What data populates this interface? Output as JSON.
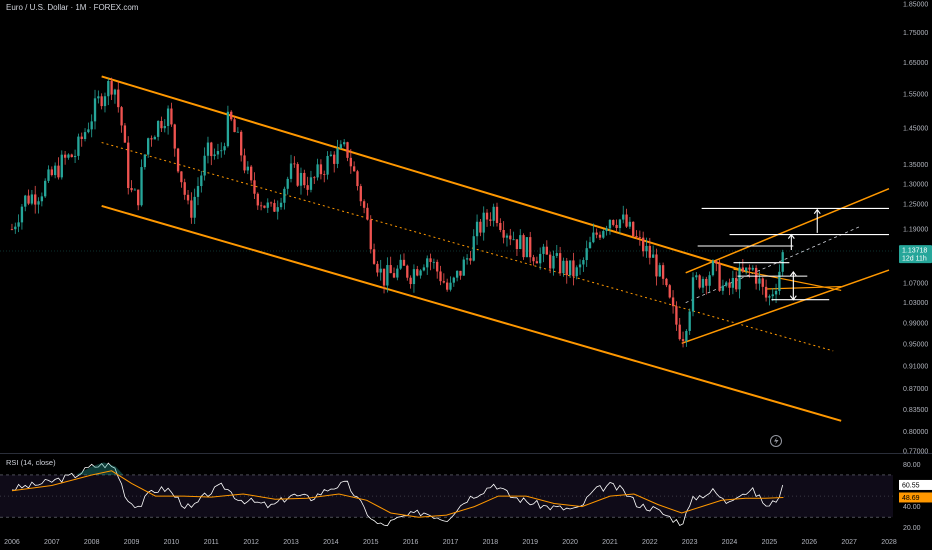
{
  "chart_title": "Euro / U.S. Dollar · 1M · FOREX.com",
  "current_price_label": "1.13718",
  "countdown_label": "12d 11h",
  "colors": {
    "background": "#000000",
    "up": "#26a69a",
    "down": "#ef5350",
    "channel": "#ff9800",
    "rsi_line": "#ffffff",
    "rsi_ma": "#ff9800",
    "rsi_band": "#7e57c2",
    "price_badge": "#26a69a",
    "rsi_badge": "#ffffff",
    "rsi_ma_badge": "#ff9800",
    "target_lines": "#ffffff"
  },
  "chart_data": [
    {
      "type": "candlestick",
      "y_scale": "log",
      "y_ticks": [
        "1.85000",
        "1.75000",
        "1.65000",
        "1.55000",
        "1.45000",
        "1.35000",
        "1.30000",
        "1.25000",
        "1.19000",
        "1.13000",
        "1.07000",
        "1.03000",
        "0.99000",
        "0.95000",
        "0.91000",
        "0.87000",
        "0.83500",
        "0.80000",
        "0.77000"
      ],
      "x_ticks": [
        "2006",
        "2007",
        "2008",
        "2009",
        "2010",
        "2011",
        "2012",
        "2013",
        "2014",
        "2015",
        "2016",
        "2017",
        "2018",
        "2019",
        "2020",
        "2021",
        "2022",
        "2023",
        "2024",
        "2025",
        "2026",
        "2027",
        "2028"
      ],
      "x_range": [
        2005.7,
        2028.1
      ],
      "y_range": [
        0.77,
        1.85
      ],
      "current_price": 1.13718,
      "price_path": [
        [
          2006.0,
          1.19
        ],
        [
          2006.3,
          1.26
        ],
        [
          2006.7,
          1.28
        ],
        [
          2007.0,
          1.32
        ],
        [
          2007.3,
          1.36
        ],
        [
          2007.6,
          1.38
        ],
        [
          2007.9,
          1.46
        ],
        [
          2008.3,
          1.56
        ],
        [
          2008.55,
          1.59
        ],
        [
          2008.75,
          1.46
        ],
        [
          2008.95,
          1.28
        ],
        [
          2009.15,
          1.26
        ],
        [
          2009.4,
          1.42
        ],
        [
          2009.9,
          1.5
        ],
        [
          2010.2,
          1.34
        ],
        [
          2010.45,
          1.22
        ],
        [
          2010.9,
          1.38
        ],
        [
          2011.2,
          1.37
        ],
        [
          2011.45,
          1.48
        ],
        [
          2011.7,
          1.4
        ],
        [
          2012.0,
          1.29
        ],
        [
          2012.5,
          1.23
        ],
        [
          2013.0,
          1.33
        ],
        [
          2013.5,
          1.3
        ],
        [
          2014.0,
          1.37
        ],
        [
          2014.4,
          1.39
        ],
        [
          2014.8,
          1.25
        ],
        [
          2015.1,
          1.13
        ],
        [
          2015.3,
          1.08
        ],
        [
          2015.8,
          1.1
        ],
        [
          2016.0,
          1.09
        ],
        [
          2016.4,
          1.13
        ],
        [
          2016.8,
          1.08
        ],
        [
          2016.95,
          1.05
        ],
        [
          2017.4,
          1.12
        ],
        [
          2017.7,
          1.19
        ],
        [
          2018.1,
          1.24
        ],
        [
          2018.3,
          1.2
        ],
        [
          2018.7,
          1.16
        ],
        [
          2019.0,
          1.14
        ],
        [
          2019.5,
          1.12
        ],
        [
          2019.9,
          1.1
        ],
        [
          2020.2,
          1.09
        ],
        [
          2020.6,
          1.17
        ],
        [
          2021.0,
          1.22
        ],
        [
          2021.3,
          1.21
        ],
        [
          2021.7,
          1.16
        ],
        [
          2022.1,
          1.12
        ],
        [
          2022.4,
          1.05
        ],
        [
          2022.7,
          0.98
        ],
        [
          2022.85,
          0.97
        ],
        [
          2023.1,
          1.07
        ],
        [
          2023.6,
          1.1
        ],
        [
          2023.9,
          1.05
        ],
        [
          2024.2,
          1.08
        ],
        [
          2024.6,
          1.1
        ],
        [
          2024.9,
          1.04
        ],
        [
          2025.0,
          1.04
        ],
        [
          2025.2,
          1.08
        ],
        [
          2025.35,
          1.137
        ]
      ],
      "channel": {
        "upper": [
          [
            2008.25,
            1.605
          ],
          [
            2024.45,
            1.094
          ]
        ],
        "lower": [
          [
            2008.25,
            1.245
          ],
          [
            2026.8,
            0.817
          ]
        ],
        "median": [
          [
            2008.25,
            1.41
          ],
          [
            2026.6,
            0.937
          ]
        ]
      },
      "rising_channel": {
        "upper": [
          [
            2022.9,
            1.092
          ],
          [
            2028.0,
            1.288
          ]
        ],
        "lower": [
          [
            2022.8,
            0.951
          ],
          [
            2028.0,
            1.098
          ]
        ],
        "mid_dashed": [
          [
            2022.9,
            1.03
          ],
          [
            2027.3,
            1.197
          ]
        ]
      },
      "targets": [
        1.239,
        1.177,
        1.151,
        1.114,
        1.085,
        1.036
      ],
      "arrows": [
        {
          "from": 1.036,
          "to": 1.094,
          "direction": "up-down"
        },
        {
          "from": 1.142,
          "to": 1.177,
          "direction": "up"
        },
        {
          "from": 1.181,
          "to": 1.236,
          "direction": "up"
        }
      ]
    },
    {
      "type": "line",
      "title": "RSI (14, close)",
      "y_ticks": [
        "80.00",
        "40.00",
        "20.00"
      ],
      "bands": [
        70,
        30
      ],
      "y_range": [
        15,
        88
      ],
      "current_rsi": 60.55,
      "current_ma": 48.69,
      "rsi_label": "60.55",
      "ma_label": "48.69",
      "rsi_path": [
        [
          2006.0,
          57
        ],
        [
          2006.5,
          60
        ],
        [
          2007.0,
          64
        ],
        [
          2007.6,
          70
        ],
        [
          2008.0,
          78
        ],
        [
          2008.4,
          80
        ],
        [
          2008.6,
          76
        ],
        [
          2008.9,
          46
        ],
        [
          2009.2,
          40
        ],
        [
          2009.5,
          55
        ],
        [
          2009.9,
          57
        ],
        [
          2010.3,
          42
        ],
        [
          2010.5,
          38
        ],
        [
          2010.9,
          52
        ],
        [
          2011.3,
          60
        ],
        [
          2011.7,
          47
        ],
        [
          2012.1,
          44
        ],
        [
          2012.5,
          40
        ],
        [
          2013.0,
          51
        ],
        [
          2013.5,
          48
        ],
        [
          2014.0,
          58
        ],
        [
          2014.4,
          62
        ],
        [
          2014.8,
          40
        ],
        [
          2015.1,
          25
        ],
        [
          2015.3,
          22
        ],
        [
          2015.8,
          30
        ],
        [
          2016.3,
          35
        ],
        [
          2016.9,
          28
        ],
        [
          2017.4,
          47
        ],
        [
          2017.9,
          57
        ],
        [
          2018.1,
          62
        ],
        [
          2018.5,
          50
        ],
        [
          2018.9,
          45
        ],
        [
          2019.4,
          40
        ],
        [
          2019.9,
          38
        ],
        [
          2020.2,
          37
        ],
        [
          2020.6,
          55
        ],
        [
          2021.0,
          60
        ],
        [
          2021.3,
          56
        ],
        [
          2021.7,
          42
        ],
        [
          2022.1,
          38
        ],
        [
          2022.5,
          30
        ],
        [
          2022.8,
          24
        ],
        [
          2023.1,
          48
        ],
        [
          2023.6,
          55
        ],
        [
          2023.9,
          44
        ],
        [
          2024.2,
          52
        ],
        [
          2024.6,
          55
        ],
        [
          2024.9,
          42
        ],
        [
          2025.0,
          40
        ],
        [
          2025.2,
          48
        ],
        [
          2025.35,
          60.55
        ]
      ],
      "ma_path": [
        [
          2006.0,
          55
        ],
        [
          2007.0,
          60
        ],
        [
          2008.0,
          70
        ],
        [
          2008.5,
          74
        ],
        [
          2009.0,
          62
        ],
        [
          2009.6,
          50
        ],
        [
          2010.3,
          50
        ],
        [
          2011.0,
          49
        ],
        [
          2011.8,
          52
        ],
        [
          2012.6,
          47
        ],
        [
          2013.4,
          48
        ],
        [
          2014.2,
          52
        ],
        [
          2014.9,
          46
        ],
        [
          2015.5,
          34
        ],
        [
          2016.2,
          30
        ],
        [
          2016.9,
          32
        ],
        [
          2017.6,
          40
        ],
        [
          2018.2,
          50
        ],
        [
          2018.9,
          50
        ],
        [
          2019.6,
          43
        ],
        [
          2020.3,
          40
        ],
        [
          2021.0,
          50
        ],
        [
          2021.6,
          52
        ],
        [
          2022.2,
          42
        ],
        [
          2022.8,
          34
        ],
        [
          2023.3,
          40
        ],
        [
          2023.8,
          46
        ],
        [
          2024.4,
          48
        ],
        [
          2024.9,
          48
        ],
        [
          2025.35,
          48.69
        ]
      ]
    }
  ]
}
